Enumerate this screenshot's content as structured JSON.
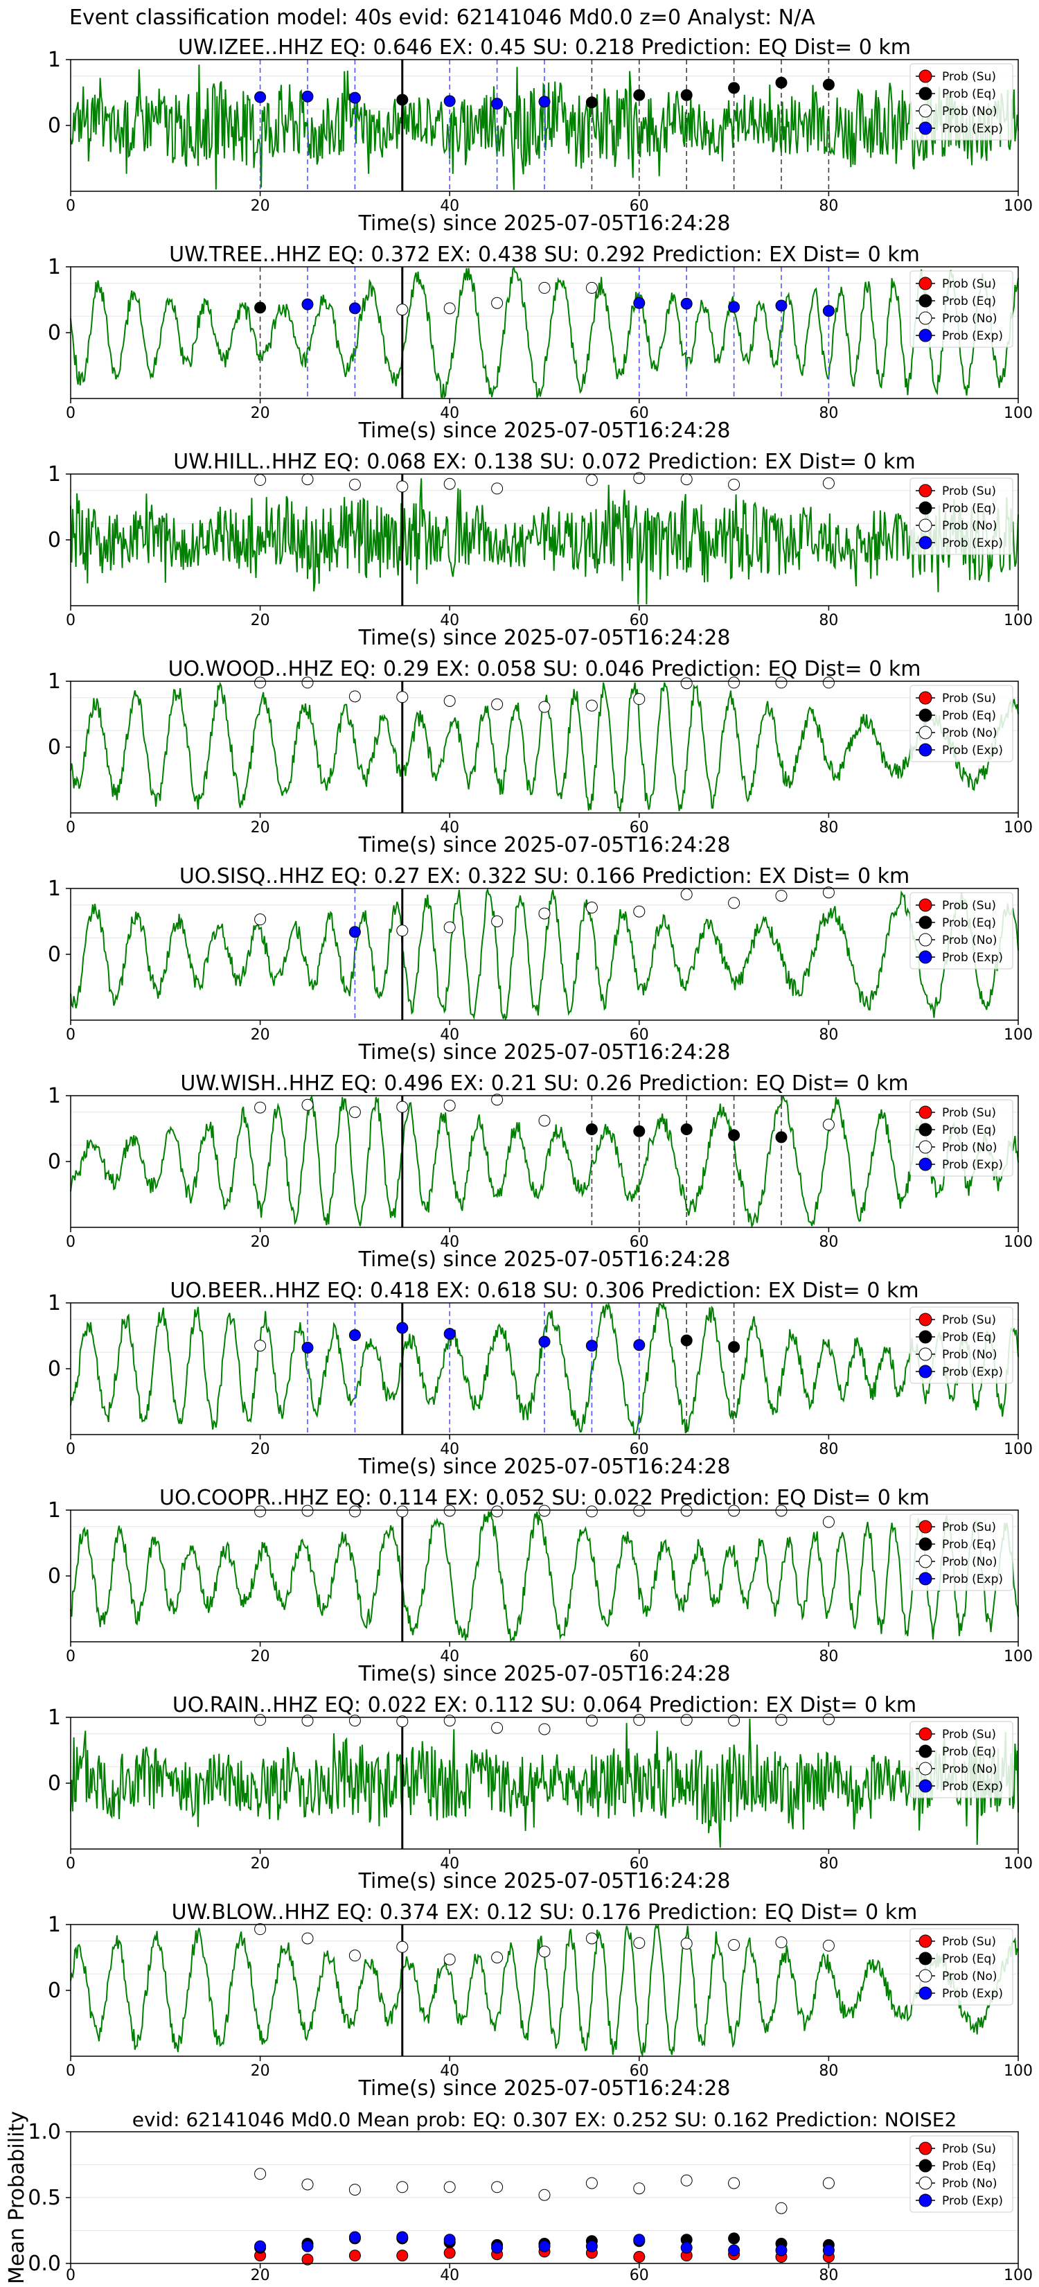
{
  "figure": {
    "title": "Event classification model: 40s evid: 62141046 Md0.0 z=0 Analyst: N/A"
  },
  "legend_labels": [
    "Prob (Su)",
    "Prob (Eq)",
    "Prob (No)",
    "Prob (Exp)"
  ],
  "colors": {
    "su": "#ff0000",
    "eq": "#000000",
    "no": "#ffffff",
    "exp": "#0000ff",
    "waveform": "#008000",
    "eq_line": "#404040",
    "exp_line": "#5555ff"
  },
  "chart_data": [
    {
      "type": "line",
      "title": "UW.IZEE..HHZ   EQ: 0.646  EX: 0.45  SU: 0.218   Prediction: EQ    Dist= 0 km",
      "xlabel": "Time(s) since 2025-07-05T16:24:28",
      "ylabel": "",
      "xlim": [
        0,
        100
      ],
      "ylim": [
        -1,
        1
      ],
      "xticks": [
        0,
        20,
        40,
        60,
        80,
        100
      ],
      "yticks": [
        0,
        1
      ],
      "pick_time": 35,
      "waveform_style": "noisy",
      "points": [
        {
          "t": 20,
          "p": 0.43,
          "cls": "exp"
        },
        {
          "t": 25,
          "p": 0.44,
          "cls": "exp"
        },
        {
          "t": 30,
          "p": 0.42,
          "cls": "exp"
        },
        {
          "t": 35,
          "p": 0.39,
          "cls": "eq"
        },
        {
          "t": 40,
          "p": 0.37,
          "cls": "exp"
        },
        {
          "t": 45,
          "p": 0.33,
          "cls": "exp"
        },
        {
          "t": 50,
          "p": 0.36,
          "cls": "exp"
        },
        {
          "t": 55,
          "p": 0.35,
          "cls": "eq"
        },
        {
          "t": 60,
          "p": 0.46,
          "cls": "eq"
        },
        {
          "t": 65,
          "p": 0.46,
          "cls": "eq"
        },
        {
          "t": 70,
          "p": 0.57,
          "cls": "eq"
        },
        {
          "t": 75,
          "p": 0.65,
          "cls": "eq"
        },
        {
          "t": 80,
          "p": 0.62,
          "cls": "eq"
        }
      ]
    },
    {
      "type": "line",
      "title": "UW.TREE..HHZ   EQ: 0.372  EX: 0.438  SU: 0.292   Prediction: EX    Dist= 0 km",
      "xlabel": "Time(s) since 2025-07-05T16:24:28",
      "ylabel": "",
      "xlim": [
        0,
        100
      ],
      "ylim": [
        -1,
        1
      ],
      "xticks": [
        0,
        20,
        40,
        60,
        80,
        100
      ],
      "yticks": [
        0,
        1
      ],
      "pick_time": 35,
      "waveform_style": "oscillating",
      "points": [
        {
          "t": 20,
          "p": 0.38,
          "cls": "eq"
        },
        {
          "t": 25,
          "p": 0.43,
          "cls": "exp"
        },
        {
          "t": 30,
          "p": 0.37,
          "cls": "exp"
        },
        {
          "t": 35,
          "p": 0.35,
          "cls": "no"
        },
        {
          "t": 40,
          "p": 0.37,
          "cls": "no"
        },
        {
          "t": 45,
          "p": 0.45,
          "cls": "no"
        },
        {
          "t": 50,
          "p": 0.68,
          "cls": "no"
        },
        {
          "t": 55,
          "p": 0.68,
          "cls": "no"
        },
        {
          "t": 60,
          "p": 0.45,
          "cls": "exp"
        },
        {
          "t": 65,
          "p": 0.44,
          "cls": "exp"
        },
        {
          "t": 70,
          "p": 0.39,
          "cls": "exp"
        },
        {
          "t": 75,
          "p": 0.41,
          "cls": "exp"
        },
        {
          "t": 80,
          "p": 0.33,
          "cls": "exp"
        }
      ]
    },
    {
      "type": "line",
      "title": "UW.HILL..HHZ   EQ: 0.068  EX: 0.138  SU: 0.072   Prediction: EX    Dist= 0 km",
      "xlabel": "Time(s) since 2025-07-05T16:24:28",
      "ylabel": "",
      "xlim": [
        0,
        100
      ],
      "ylim": [
        -1,
        1
      ],
      "xticks": [
        0,
        20,
        40,
        60,
        80,
        100
      ],
      "yticks": [
        0,
        1
      ],
      "pick_time": 35,
      "waveform_style": "noisy",
      "points": [
        {
          "t": 20,
          "p": 0.91,
          "cls": "no"
        },
        {
          "t": 25,
          "p": 0.92,
          "cls": "no"
        },
        {
          "t": 30,
          "p": 0.84,
          "cls": "no"
        },
        {
          "t": 35,
          "p": 0.81,
          "cls": "no"
        },
        {
          "t": 40,
          "p": 0.85,
          "cls": "no"
        },
        {
          "t": 45,
          "p": 0.78,
          "cls": "no"
        },
        {
          "t": 55,
          "p": 0.91,
          "cls": "no"
        },
        {
          "t": 60,
          "p": 0.94,
          "cls": "no"
        },
        {
          "t": 65,
          "p": 0.92,
          "cls": "no"
        },
        {
          "t": 70,
          "p": 0.84,
          "cls": "no"
        },
        {
          "t": 80,
          "p": 0.86,
          "cls": "no"
        }
      ]
    },
    {
      "type": "line",
      "title": "UO.WOOD..HHZ   EQ: 0.29  EX: 0.058  SU: 0.046   Prediction: EQ    Dist= 0 km",
      "xlabel": "Time(s) since 2025-07-05T16:24:28",
      "ylabel": "",
      "xlim": [
        0,
        100
      ],
      "ylim": [
        -1,
        1
      ],
      "xticks": [
        0,
        20,
        40,
        60,
        80,
        100
      ],
      "yticks": [
        0,
        1
      ],
      "pick_time": 35,
      "waveform_style": "oscillating",
      "points": [
        {
          "t": 20,
          "p": 0.98,
          "cls": "no"
        },
        {
          "t": 25,
          "p": 0.98,
          "cls": "no"
        },
        {
          "t": 30,
          "p": 0.77,
          "cls": "no"
        },
        {
          "t": 35,
          "p": 0.76,
          "cls": "no"
        },
        {
          "t": 40,
          "p": 0.7,
          "cls": "no"
        },
        {
          "t": 45,
          "p": 0.65,
          "cls": "no"
        },
        {
          "t": 50,
          "p": 0.61,
          "cls": "no"
        },
        {
          "t": 55,
          "p": 0.63,
          "cls": "no"
        },
        {
          "t": 60,
          "p": 0.73,
          "cls": "no"
        },
        {
          "t": 65,
          "p": 0.97,
          "cls": "no"
        },
        {
          "t": 70,
          "p": 0.98,
          "cls": "no"
        },
        {
          "t": 75,
          "p": 0.98,
          "cls": "no"
        },
        {
          "t": 80,
          "p": 0.98,
          "cls": "no"
        }
      ]
    },
    {
      "type": "line",
      "title": "UO.SISQ..HHZ   EQ: 0.27  EX: 0.322  SU: 0.166   Prediction: EX    Dist= 0 km",
      "xlabel": "Time(s) since 2025-07-05T16:24:28",
      "ylabel": "",
      "xlim": [
        0,
        100
      ],
      "ylim": [
        -1,
        1
      ],
      "xticks": [
        0,
        20,
        40,
        60,
        80,
        100
      ],
      "yticks": [
        0,
        1
      ],
      "pick_time": 35,
      "waveform_style": "oscillating",
      "points": [
        {
          "t": 20,
          "p": 0.53,
          "cls": "no"
        },
        {
          "t": 30,
          "p": 0.34,
          "cls": "exp"
        },
        {
          "t": 35,
          "p": 0.36,
          "cls": "no"
        },
        {
          "t": 40,
          "p": 0.41,
          "cls": "no"
        },
        {
          "t": 45,
          "p": 0.5,
          "cls": "no"
        },
        {
          "t": 50,
          "p": 0.62,
          "cls": "no"
        },
        {
          "t": 55,
          "p": 0.71,
          "cls": "no"
        },
        {
          "t": 60,
          "p": 0.65,
          "cls": "no"
        },
        {
          "t": 65,
          "p": 0.91,
          "cls": "no"
        },
        {
          "t": 70,
          "p": 0.78,
          "cls": "no"
        },
        {
          "t": 75,
          "p": 0.89,
          "cls": "no"
        },
        {
          "t": 80,
          "p": 0.94,
          "cls": "no"
        }
      ]
    },
    {
      "type": "line",
      "title": "UW.WISH..HHZ   EQ: 0.496  EX: 0.21  SU: 0.26   Prediction: EQ    Dist= 0 km",
      "xlabel": "Time(s) since 2025-07-05T16:24:28",
      "ylabel": "",
      "xlim": [
        0,
        100
      ],
      "ylim": [
        -1,
        1
      ],
      "xticks": [
        0,
        20,
        40,
        60,
        80,
        100
      ],
      "yticks": [
        0,
        1
      ],
      "pick_time": 35,
      "waveform_style": "oscillating",
      "points": [
        {
          "t": 20,
          "p": 0.82,
          "cls": "no"
        },
        {
          "t": 25,
          "p": 0.86,
          "cls": "no"
        },
        {
          "t": 30,
          "p": 0.75,
          "cls": "no"
        },
        {
          "t": 35,
          "p": 0.83,
          "cls": "no"
        },
        {
          "t": 40,
          "p": 0.85,
          "cls": "no"
        },
        {
          "t": 45,
          "p": 0.94,
          "cls": "no"
        },
        {
          "t": 50,
          "p": 0.62,
          "cls": "no"
        },
        {
          "t": 55,
          "p": 0.49,
          "cls": "eq"
        },
        {
          "t": 60,
          "p": 0.46,
          "cls": "eq"
        },
        {
          "t": 65,
          "p": 0.49,
          "cls": "eq"
        },
        {
          "t": 70,
          "p": 0.4,
          "cls": "eq"
        },
        {
          "t": 75,
          "p": 0.37,
          "cls": "eq"
        },
        {
          "t": 80,
          "p": 0.56,
          "cls": "no"
        }
      ]
    },
    {
      "type": "line",
      "title": "UO.BEER..HHZ   EQ: 0.418  EX: 0.618  SU: 0.306   Prediction: EX    Dist= 0 km",
      "xlabel": "Time(s) since 2025-07-05T16:24:28",
      "ylabel": "",
      "xlim": [
        0,
        100
      ],
      "ylim": [
        -1,
        1
      ],
      "xticks": [
        0,
        20,
        40,
        60,
        80,
        100
      ],
      "yticks": [
        0,
        1
      ],
      "pick_time": 35,
      "waveform_style": "oscillating",
      "points": [
        {
          "t": 20,
          "p": 0.35,
          "cls": "no"
        },
        {
          "t": 25,
          "p": 0.32,
          "cls": "exp"
        },
        {
          "t": 30,
          "p": 0.51,
          "cls": "exp"
        },
        {
          "t": 35,
          "p": 0.62,
          "cls": "exp"
        },
        {
          "t": 40,
          "p": 0.53,
          "cls": "exp"
        },
        {
          "t": 50,
          "p": 0.41,
          "cls": "exp"
        },
        {
          "t": 55,
          "p": 0.35,
          "cls": "exp"
        },
        {
          "t": 60,
          "p": 0.36,
          "cls": "exp"
        },
        {
          "t": 65,
          "p": 0.43,
          "cls": "eq"
        },
        {
          "t": 70,
          "p": 0.33,
          "cls": "eq"
        }
      ]
    },
    {
      "type": "line",
      "title": "UO.COOPR..HHZ   EQ: 0.114  EX: 0.052  SU: 0.022   Prediction: EQ    Dist= 0 km",
      "xlabel": "Time(s) since 2025-07-05T16:24:28",
      "ylabel": "",
      "xlim": [
        0,
        100
      ],
      "ylim": [
        -1,
        1
      ],
      "xticks": [
        0,
        20,
        40,
        60,
        80,
        100
      ],
      "yticks": [
        0,
        1
      ],
      "pick_time": 35,
      "waveform_style": "oscillating",
      "points": [
        {
          "t": 20,
          "p": 0.98,
          "cls": "no"
        },
        {
          "t": 25,
          "p": 0.99,
          "cls": "no"
        },
        {
          "t": 30,
          "p": 0.98,
          "cls": "no"
        },
        {
          "t": 35,
          "p": 0.98,
          "cls": "no"
        },
        {
          "t": 40,
          "p": 0.99,
          "cls": "no"
        },
        {
          "t": 45,
          "p": 0.98,
          "cls": "no"
        },
        {
          "t": 50,
          "p": 0.99,
          "cls": "no"
        },
        {
          "t": 55,
          "p": 0.98,
          "cls": "no"
        },
        {
          "t": 60,
          "p": 0.99,
          "cls": "no"
        },
        {
          "t": 65,
          "p": 0.99,
          "cls": "no"
        },
        {
          "t": 70,
          "p": 0.99,
          "cls": "no"
        },
        {
          "t": 75,
          "p": 0.99,
          "cls": "no"
        },
        {
          "t": 80,
          "p": 0.82,
          "cls": "no"
        }
      ]
    },
    {
      "type": "line",
      "title": "UO.RAIN..HHZ   EQ: 0.022  EX: 0.112  SU: 0.064   Prediction: EX    Dist= 0 km",
      "xlabel": "Time(s) since 2025-07-05T16:24:28",
      "ylabel": "",
      "xlim": [
        0,
        100
      ],
      "ylim": [
        -1,
        1
      ],
      "xticks": [
        0,
        20,
        40,
        60,
        80,
        100
      ],
      "yticks": [
        0,
        1
      ],
      "pick_time": 35,
      "waveform_style": "noisy",
      "points": [
        {
          "t": 20,
          "p": 0.96,
          "cls": "no"
        },
        {
          "t": 25,
          "p": 0.95,
          "cls": "no"
        },
        {
          "t": 30,
          "p": 0.95,
          "cls": "no"
        },
        {
          "t": 35,
          "p": 0.94,
          "cls": "no"
        },
        {
          "t": 40,
          "p": 0.95,
          "cls": "no"
        },
        {
          "t": 45,
          "p": 0.84,
          "cls": "no"
        },
        {
          "t": 50,
          "p": 0.82,
          "cls": "no"
        },
        {
          "t": 55,
          "p": 0.95,
          "cls": "no"
        },
        {
          "t": 60,
          "p": 0.96,
          "cls": "no"
        },
        {
          "t": 65,
          "p": 0.96,
          "cls": "no"
        },
        {
          "t": 70,
          "p": 0.95,
          "cls": "no"
        },
        {
          "t": 75,
          "p": 0.96,
          "cls": "no"
        },
        {
          "t": 80,
          "p": 0.97,
          "cls": "no"
        }
      ]
    },
    {
      "type": "line",
      "title": "UW.BLOW..HHZ   EQ: 0.374  EX: 0.12  SU: 0.176   Prediction: EQ    Dist= 0 km",
      "xlabel": "Time(s) since 2025-07-05T16:24:28",
      "ylabel": "",
      "xlim": [
        0,
        100
      ],
      "ylim": [
        -1,
        1
      ],
      "xticks": [
        0,
        20,
        40,
        60,
        80,
        100
      ],
      "yticks": [
        0,
        1
      ],
      "pick_time": 35,
      "waveform_style": "oscillating",
      "points": [
        {
          "t": 20,
          "p": 0.93,
          "cls": "no"
        },
        {
          "t": 25,
          "p": 0.79,
          "cls": "no"
        },
        {
          "t": 30,
          "p": 0.53,
          "cls": "no"
        },
        {
          "t": 35,
          "p": 0.66,
          "cls": "no"
        },
        {
          "t": 40,
          "p": 0.47,
          "cls": "no"
        },
        {
          "t": 45,
          "p": 0.5,
          "cls": "no"
        },
        {
          "t": 50,
          "p": 0.59,
          "cls": "no"
        },
        {
          "t": 55,
          "p": 0.79,
          "cls": "no"
        },
        {
          "t": 60,
          "p": 0.72,
          "cls": "no"
        },
        {
          "t": 65,
          "p": 0.71,
          "cls": "no"
        },
        {
          "t": 70,
          "p": 0.69,
          "cls": "no"
        },
        {
          "t": 75,
          "p": 0.73,
          "cls": "no"
        },
        {
          "t": 80,
          "p": 0.68,
          "cls": "no"
        }
      ]
    },
    {
      "type": "scatter",
      "title": "evid: 62141046  Md0.0   Mean prob:   EQ: 0.307  EX: 0.252  SU: 0.162   Prediction: NOISE2",
      "xlabel": "",
      "ylabel": "Mean Probability",
      "xlim": [
        0,
        100
      ],
      "ylim": [
        0,
        1
      ],
      "xticks": [
        0,
        20,
        40,
        60,
        80,
        100
      ],
      "yticks": [
        0.0,
        0.5,
        1.0
      ],
      "ytick_labels": [
        "0.0",
        "0.5",
        "1.0"
      ],
      "x": [
        20,
        25,
        30,
        35,
        40,
        45,
        50,
        55,
        60,
        65,
        70,
        75,
        80
      ],
      "series": [
        {
          "name": "Prob (Su)",
          "cls": "su",
          "values": [
            0.06,
            0.03,
            0.06,
            0.06,
            0.08,
            0.07,
            0.09,
            0.08,
            0.05,
            0.06,
            0.07,
            0.05,
            0.05
          ]
        },
        {
          "name": "Prob (Eq)",
          "cls": "eq",
          "values": [
            0.12,
            0.15,
            0.19,
            0.19,
            0.16,
            0.14,
            0.15,
            0.17,
            0.17,
            0.18,
            0.19,
            0.15,
            0.14
          ]
        },
        {
          "name": "Prob (No)",
          "cls": "no",
          "values": [
            0.68,
            0.6,
            0.56,
            0.58,
            0.58,
            0.58,
            0.52,
            0.61,
            0.57,
            0.63,
            0.61,
            0.42,
            0.61
          ]
        },
        {
          "name": "Prob (Exp)",
          "cls": "exp",
          "values": [
            0.13,
            0.13,
            0.2,
            0.2,
            0.18,
            0.12,
            0.13,
            0.13,
            0.18,
            0.12,
            0.1,
            0.1,
            0.1
          ]
        }
      ]
    }
  ]
}
